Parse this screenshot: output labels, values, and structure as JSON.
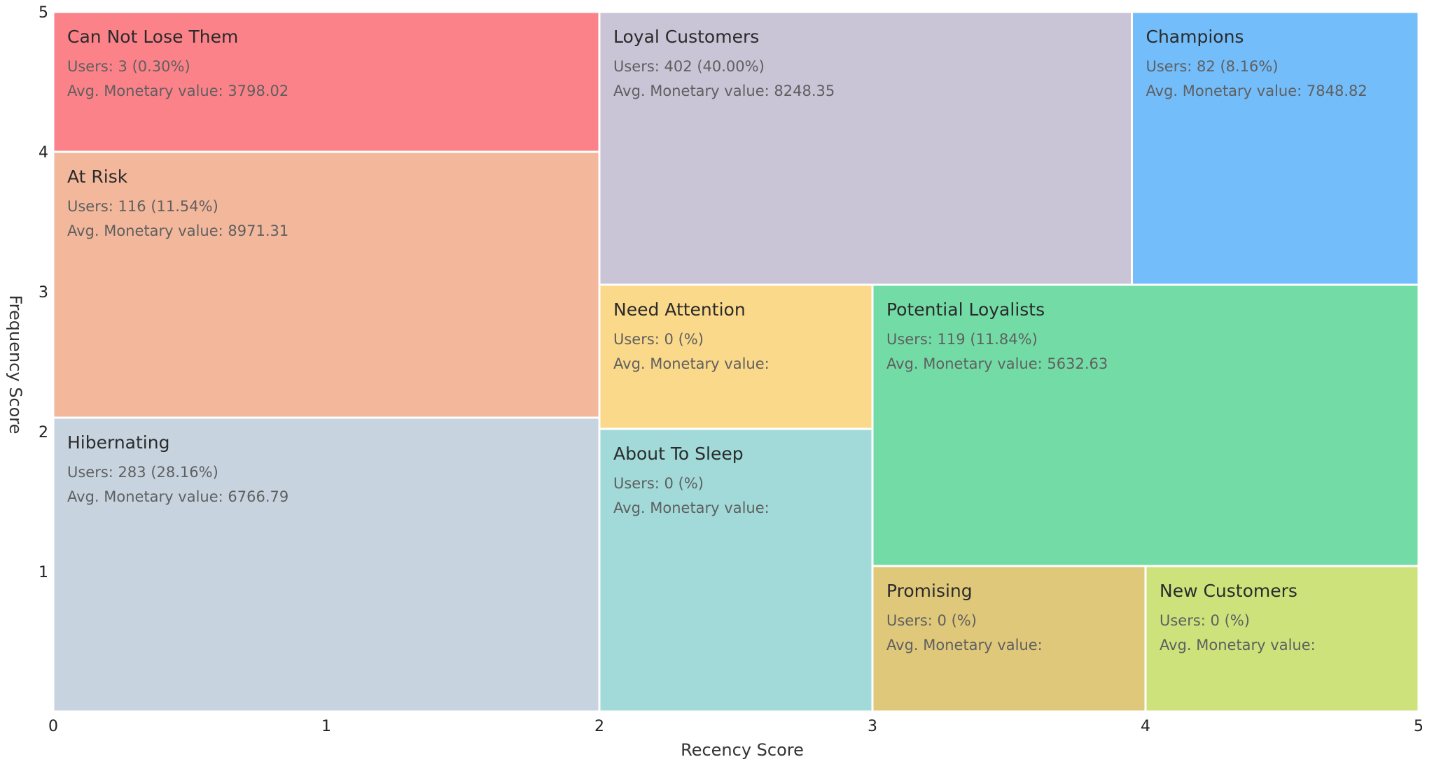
{
  "chart_data": {
    "type": "treemap",
    "xlabel": "Recency Score",
    "ylabel": "Frequency Score",
    "xlim": [
      0,
      5
    ],
    "ylim": [
      0,
      5
    ],
    "x_ticks": [
      "0",
      "1",
      "2",
      "3",
      "4",
      "5"
    ],
    "y_ticks": [
      "1",
      "2",
      "3",
      "4",
      "5"
    ],
    "grid": false,
    "segments": [
      {
        "name": "Can Not Lose Them",
        "users_text": "Users: 3 (0.30%)",
        "monetary_text": "Avg. Monetary value: 3798.02",
        "x0": 0,
        "x1": 2,
        "y0": 4,
        "y1": 5,
        "color": "#fc8289"
      },
      {
        "name": "At Risk",
        "users_text": "Users: 116 (11.54%)",
        "monetary_text": "Avg. Monetary value: 8971.31",
        "x0": 0,
        "x1": 2,
        "y0": 2.1,
        "y1": 4,
        "color": "#f3b89c"
      },
      {
        "name": "Hibernating",
        "users_text": "Users: 283 (28.16%)",
        "monetary_text": "Avg. Monetary value: 6766.79",
        "x0": 0,
        "x1": 2,
        "y0": 0,
        "y1": 2.1,
        "color": "#c7d4e0"
      },
      {
        "name": "Loyal Customers",
        "users_text": "Users: 402 (40.00%)",
        "monetary_text": "Avg. Monetary value: 8248.35",
        "x0": 2,
        "x1": 3.95,
        "y0": 3.05,
        "y1": 5,
        "color": "#c9c4d6"
      },
      {
        "name": "Champions",
        "users_text": "Users: 82 (8.16%)",
        "monetary_text": "Avg. Monetary value: 7848.82",
        "x0": 3.95,
        "x1": 5,
        "y0": 3.05,
        "y1": 5,
        "color": "#72bdfa"
      },
      {
        "name": "Need Attention",
        "users_text": "Users: 0 (%)",
        "monetary_text": "Avg. Monetary value:",
        "x0": 2,
        "x1": 3,
        "y0": 2.02,
        "y1": 3.05,
        "color": "#fbd98a"
      },
      {
        "name": "About To Sleep",
        "users_text": "Users: 0 (%)",
        "monetary_text": "Avg. Monetary value:",
        "x0": 2,
        "x1": 3,
        "y0": 0,
        "y1": 2.02,
        "color": "#a1dad9"
      },
      {
        "name": "Potential Loyalists",
        "users_text": "Users: 119 (11.84%)",
        "monetary_text": "Avg. Monetary value: 5632.63",
        "x0": 3,
        "x1": 5,
        "y0": 1.04,
        "y1": 3.05,
        "color": "#73dca6"
      },
      {
        "name": "Promising",
        "users_text": "Users: 0 (%)",
        "monetary_text": "Avg. Monetary value:",
        "x0": 3,
        "x1": 4,
        "y0": 0,
        "y1": 1.04,
        "color": "#e0c87a"
      },
      {
        "name": "New Customers",
        "users_text": "Users: 0 (%)",
        "monetary_text": "Avg. Monetary value:",
        "x0": 4,
        "x1": 5,
        "y0": 0,
        "y1": 1.04,
        "color": "#cee27c"
      }
    ]
  }
}
